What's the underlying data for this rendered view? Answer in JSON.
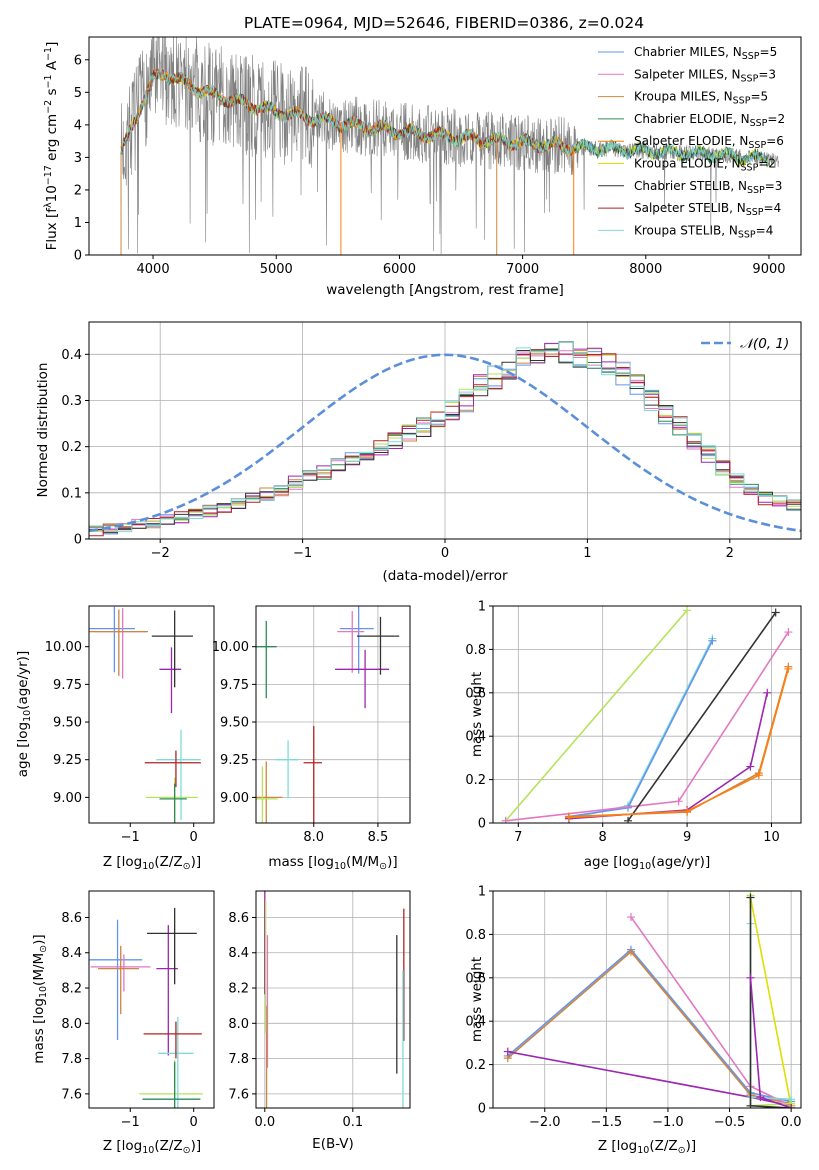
{
  "chart_data": [
    {
      "id": "spectrum",
      "type": "line",
      "title": "PLATE=0964, MJD=52646, FIBERID=0386, z=0.024",
      "xlabel": "wavelength [Angstrom, rest frame]",
      "ylabel_parts": [
        "Flux [",
        "f",
        "λ",
        "10",
        "−17",
        " erg cm",
        "−2",
        " s",
        "−1",
        " A",
        "−1",
        "]"
      ],
      "xlim": [
        3480,
        9260
      ],
      "ylim": [
        0,
        6.7
      ],
      "xticks": [
        4000,
        5000,
        6000,
        7000,
        8000,
        9000
      ],
      "yticks": [
        0,
        1,
        2,
        3,
        4,
        5,
        6
      ],
      "grid": false,
      "legend_position": "top-right",
      "data_color": "#808080",
      "series": [
        {
          "name": "Chabrier MILES, N",
          "sub": "SSP",
          "n": "=5",
          "color": "#6495ed"
        },
        {
          "name": "Salpeter MILES, N",
          "sub": "SSP",
          "n": "=3",
          "color": "#e377c2"
        },
        {
          "name": "Kroupa MILES, N",
          "sub": "SSP",
          "n": "=5",
          "color": "#cd853f"
        },
        {
          "name": "Chabrier ELODIE, N",
          "sub": "SSP",
          "n": "=2",
          "color": "#2e8b57"
        },
        {
          "name": "Salpeter ELODIE, N",
          "sub": "SSP",
          "n": "=6",
          "color": "#ff7f0e"
        },
        {
          "name": "Kroupa ELODIE, N",
          "sub": "SSP",
          "n": "=2",
          "color": "#dde000"
        },
        {
          "name": "Chabrier STELIB, N",
          "sub": "SSP",
          "n": "=3",
          "color": "#333333"
        },
        {
          "name": "Salpeter STELIB, N",
          "sub": "SSP",
          "n": "=4",
          "color": "#b22222"
        },
        {
          "name": "Kroupa STELIB, N",
          "sub": "SSP",
          "n": "=4",
          "color": "#7fdbda"
        }
      ],
      "continuum": {
        "x": [
          3750,
          3900,
          4000,
          4100,
          4300,
          4500,
          4800,
          5000,
          5300,
          5600,
          6000,
          6500,
          7000,
          7500,
          8000,
          8500,
          9000
        ],
        "y": [
          3.2,
          4.6,
          5.4,
          5.6,
          5.2,
          4.9,
          4.6,
          4.4,
          4.2,
          4.0,
          3.8,
          3.6,
          3.45,
          3.3,
          3.2,
          3.1,
          2.95
        ]
      }
    },
    {
      "id": "residuals",
      "type": "bar",
      "xlabel": "(data-model)/error",
      "ylabel": "Normed distribution",
      "xlim": [
        -2.5,
        2.5
      ],
      "ylim": [
        0,
        0.47
      ],
      "xticks": [
        -2,
        -1,
        0,
        1,
        2
      ],
      "yticks": [
        0.0,
        0.1,
        0.2,
        0.3,
        0.4
      ],
      "grid": true,
      "legend_position": "top-right",
      "normal_label": "𝒩(0, 1)",
      "normal_color": "#5b8fdb",
      "bin_width": 0.1,
      "base_values": [
        0.018,
        0.022,
        0.027,
        0.031,
        0.036,
        0.041,
        0.047,
        0.054,
        0.061,
        0.069,
        0.078,
        0.088,
        0.098,
        0.109,
        0.121,
        0.133,
        0.146,
        0.159,
        0.173,
        0.187,
        0.201,
        0.215,
        0.229,
        0.242,
        0.255,
        0.276,
        0.3,
        0.33,
        0.35,
        0.372,
        0.39,
        0.395,
        0.398,
        0.398,
        0.395,
        0.388,
        0.376,
        0.36,
        0.33,
        0.3,
        0.272,
        0.245,
        0.215,
        0.185,
        0.155,
        0.125,
        0.105,
        0.088,
        0.08,
        0.075
      ],
      "series_colors": [
        "#6495ed",
        "#e377c2",
        "#cd853f",
        "#2e8b57",
        "#b5e35c",
        "#9c27b0",
        "#333333",
        "#b22222",
        "#7fdbda"
      ]
    },
    {
      "id": "z-age",
      "type": "scatter",
      "xlabel_parts": [
        "Z [log",
        "10",
        "(Z/Z",
        "⊙",
        ")]"
      ],
      "ylabel_parts": [
        "age  [log",
        "10",
        "(age/yr)]"
      ],
      "xlim": [
        -1.65,
        0.32
      ],
      "ylim": [
        8.83,
        10.27
      ],
      "xticks": [
        -1,
        0
      ],
      "yticks": [
        9.0,
        9.25,
        9.5,
        9.75,
        10.0
      ],
      "ytick_labels": [
        "9.00",
        "9.25",
        "9.50",
        "9.75",
        "10.00"
      ],
      "grid": false
    },
    {
      "id": "mass-age",
      "type": "scatter",
      "xlabel_parts": [
        "mass [log",
        "10",
        "(M/M",
        "⊙",
        ")]"
      ],
      "xlim": [
        7.55,
        8.75
      ],
      "ylim": [
        8.83,
        10.27
      ],
      "xticks": [
        8.0,
        8.5
      ],
      "xtick_labels": [
        "8.0",
        "8.5"
      ],
      "yticks": [
        9.0,
        9.25,
        9.5,
        9.75,
        10.0
      ],
      "ytick_labels": [
        "9.00",
        "9.25",
        "9.50",
        "9.75",
        "10.00"
      ],
      "grid": true
    },
    {
      "id": "age-weight",
      "type": "line",
      "xlabel_parts": [
        "age  [log",
        "10",
        "(age/yr)]"
      ],
      "ylabel": "mass weight",
      "xlim": [
        6.7,
        10.35
      ],
      "ylim": [
        0,
        1.0
      ],
      "xticks": [
        7,
        8,
        9,
        10
      ],
      "yticks": [
        0.0,
        0.2,
        0.4,
        0.6,
        0.8,
        1.0
      ],
      "grid": true,
      "series": [
        {
          "color": "#b5e35c",
          "x": [
            6.85,
            9.0
          ],
          "y": [
            0.01,
            0.98
          ]
        },
        {
          "color": "#7fdbda",
          "x": [
            7.6,
            8.3,
            9.3
          ],
          "y": [
            0.02,
            0.08,
            0.85
          ]
        },
        {
          "color": "#6495ed",
          "x": [
            7.6,
            8.3,
            9.3
          ],
          "y": [
            0.03,
            0.07,
            0.84
          ]
        },
        {
          "color": "#e377c2",
          "x": [
            6.85,
            8.9,
            10.2
          ],
          "y": [
            0.01,
            0.1,
            0.88
          ]
        },
        {
          "color": "#333333",
          "x": [
            8.3,
            10.05
          ],
          "y": [
            0.01,
            0.97
          ]
        },
        {
          "color": "#9c27b0",
          "x": [
            7.6,
            9.0,
            9.75,
            9.95
          ],
          "y": [
            0.02,
            0.06,
            0.26,
            0.6
          ]
        },
        {
          "color": "#cd853f",
          "x": [
            7.6,
            9.0,
            9.85,
            10.2
          ],
          "y": [
            0.03,
            0.05,
            0.23,
            0.72
          ]
        },
        {
          "color": "#ff7f0e",
          "x": [
            7.6,
            9.0,
            9.85,
            10.2
          ],
          "y": [
            0.025,
            0.055,
            0.22,
            0.71
          ]
        }
      ]
    },
    {
      "id": "z-mass",
      "type": "scatter",
      "xlabel_parts": [
        "Z [log",
        "10",
        "(Z/Z",
        "⊙",
        ")]"
      ],
      "ylabel_parts": [
        "mass [log",
        "10",
        "(M/M",
        "⊙",
        ")]"
      ],
      "xlim": [
        -1.65,
        0.32
      ],
      "ylim": [
        7.52,
        8.75
      ],
      "xticks": [
        -1,
        0
      ],
      "yticks": [
        7.6,
        7.8,
        8.0,
        8.2,
        8.4,
        8.6
      ],
      "ytick_labels": [
        "7.6",
        "7.8",
        "8.0",
        "8.2",
        "8.4",
        "8.6"
      ],
      "grid": false
    },
    {
      "id": "ebv-mass",
      "type": "scatter",
      "xlabel": "E(B-V)",
      "xlim": [
        -0.01,
        0.165
      ],
      "ylim": [
        7.52,
        8.75
      ],
      "xticks": [
        0.0,
        0.1
      ],
      "xtick_labels": [
        "0.0",
        "0.1"
      ],
      "yticks": [
        7.6,
        7.8,
        8.0,
        8.2,
        8.4,
        8.6
      ],
      "ytick_labels": [
        "7.6",
        "7.8",
        "8.0",
        "8.2",
        "8.4",
        "8.6"
      ],
      "grid": true
    },
    {
      "id": "z-weight",
      "type": "line",
      "xlabel_parts": [
        "Z [log",
        "10",
        "(Z/Z",
        "⊙",
        ")]"
      ],
      "ylabel": "mass weight",
      "xlim": [
        -2.42,
        0.08
      ],
      "ylim": [
        0,
        1.0
      ],
      "xticks": [
        -2.0,
        -1.5,
        -1.0,
        -0.5,
        0.0
      ],
      "xtick_labels": [
        "−2.0",
        "−1.5",
        "−1.0",
        "−0.5",
        "0.0"
      ],
      "yticks": [
        0.0,
        0.2,
        0.4,
        0.6,
        0.8,
        1.0
      ],
      "grid": true,
      "series": [
        {
          "color": "#6495ed",
          "x": [
            -2.3,
            -1.3,
            -0.33,
            0.0
          ],
          "y": [
            0.24,
            0.73,
            0.07,
            0.03
          ]
        },
        {
          "color": "#cd853f",
          "x": [
            -2.3,
            -1.3,
            -0.33,
            0.0
          ],
          "y": [
            0.23,
            0.72,
            0.06,
            0.02
          ]
        },
        {
          "color": "#e377c2",
          "x": [
            -1.3,
            -0.33,
            0.0
          ],
          "y": [
            0.88,
            0.1,
            0.01
          ]
        },
        {
          "color": "#9c27b0",
          "x": [
            -2.3,
            -0.33,
            0.0
          ],
          "y": [
            0.26,
            0.05,
            0.01
          ]
        },
        {
          "color": "#b5e35c",
          "x": [
            -0.33,
            -0.33,
            0.0
          ],
          "y": [
            0.98,
            0.01,
            0.02
          ]
        },
        {
          "color": "#dde000",
          "x": [
            -0.33,
            0.0
          ],
          "y": [
            0.97,
            0.01
          ]
        },
        {
          "color": "#7fdbda",
          "x": [
            -0.33,
            -0.33,
            0.0
          ],
          "y": [
            0.85,
            0.05,
            0.04
          ]
        },
        {
          "color": "#333333",
          "x": [
            -0.33,
            -0.33,
            0.0
          ],
          "y": [
            0.97,
            0.01,
            0.0
          ]
        },
        {
          "color": "#9c27b0",
          "x": [
            -0.33,
            -0.25,
            0.0
          ],
          "y": [
            0.6,
            0.05,
            0.0
          ]
        }
      ]
    }
  ]
}
